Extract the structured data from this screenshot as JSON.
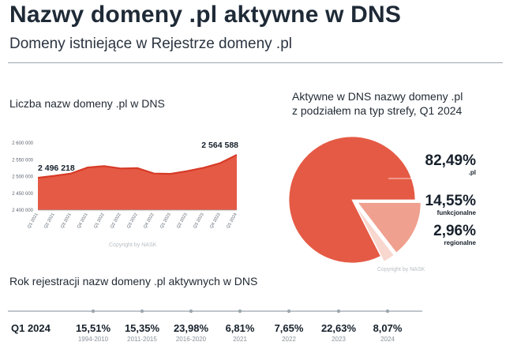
{
  "header": {
    "title": "Nazwy domeny .pl aktywne w DNS",
    "subtitle": "Domeny istniejące w Rejestrze domeny .pl"
  },
  "line_section": {
    "title": "Liczba nazw domeny .pl w DNS",
    "copyright": "Copyright by NASK"
  },
  "pie_section": {
    "title_line1": "Aktywne w DNS nazwy domeny .pl",
    "title_line2": "z podziałem na typ strefy, Q1 2024",
    "copyright": "Copyright by NASK"
  },
  "timeline_section": {
    "title": "Rok rejestracji nazw domeny .pl aktywnych w DNS"
  },
  "colors": {
    "accent": "#e55a45",
    "accent_light": "#f0a08e",
    "accent_pale": "#f8d7cf",
    "axis": "#9aa5ae"
  },
  "chart_data": [
    {
      "type": "area",
      "title": "Liczba nazw domeny .pl w DNS",
      "categories": [
        "Q1 2021",
        "Q2 2021",
        "Q3 2021",
        "Q4 2021",
        "Q1 2022",
        "Q2 2022",
        "Q3 2022",
        "Q4 2022",
        "Q1 2023",
        "Q2 2023",
        "Q3 2023",
        "Q4 2023",
        "Q1 2024"
      ],
      "values": [
        2496218,
        2502000,
        2509000,
        2527000,
        2531000,
        2524000,
        2525000,
        2509000,
        2508000,
        2516000,
        2526000,
        2540000,
        2564588
      ],
      "y_ticks": [
        "2 400 000",
        "2 450 000",
        "2 500 000",
        "2 550 000",
        "2 600 000"
      ],
      "ylim": [
        2400000,
        2600000
      ],
      "annotations": [
        {
          "index": 0,
          "text": "2 496 218"
        },
        {
          "index": 12,
          "text": "2 564 588"
        }
      ]
    },
    {
      "type": "pie",
      "title": "Aktywne w DNS nazwy domeny .pl z podziałem na typ strefy, Q1 2024",
      "labels": [
        ".pl",
        "funkcjonalne",
        "regionalne"
      ],
      "values": [
        82.49,
        14.55,
        2.96
      ],
      "value_labels": [
        "82,49%",
        "14,55%",
        "2,96%"
      ]
    },
    {
      "type": "table",
      "title": "Rok rejestracji nazw domeny .pl aktywnych w DNS",
      "row_label": "Q1 2024",
      "categories": [
        "1994-2010",
        "2011-2015",
        "2016-2020",
        "2021",
        "2022",
        "2023",
        "2024"
      ],
      "values": [
        "15,51%",
        "15,35%",
        "23,98%",
        "6,81%",
        "7,65%",
        "22,63%",
        "8,07%"
      ]
    }
  ]
}
